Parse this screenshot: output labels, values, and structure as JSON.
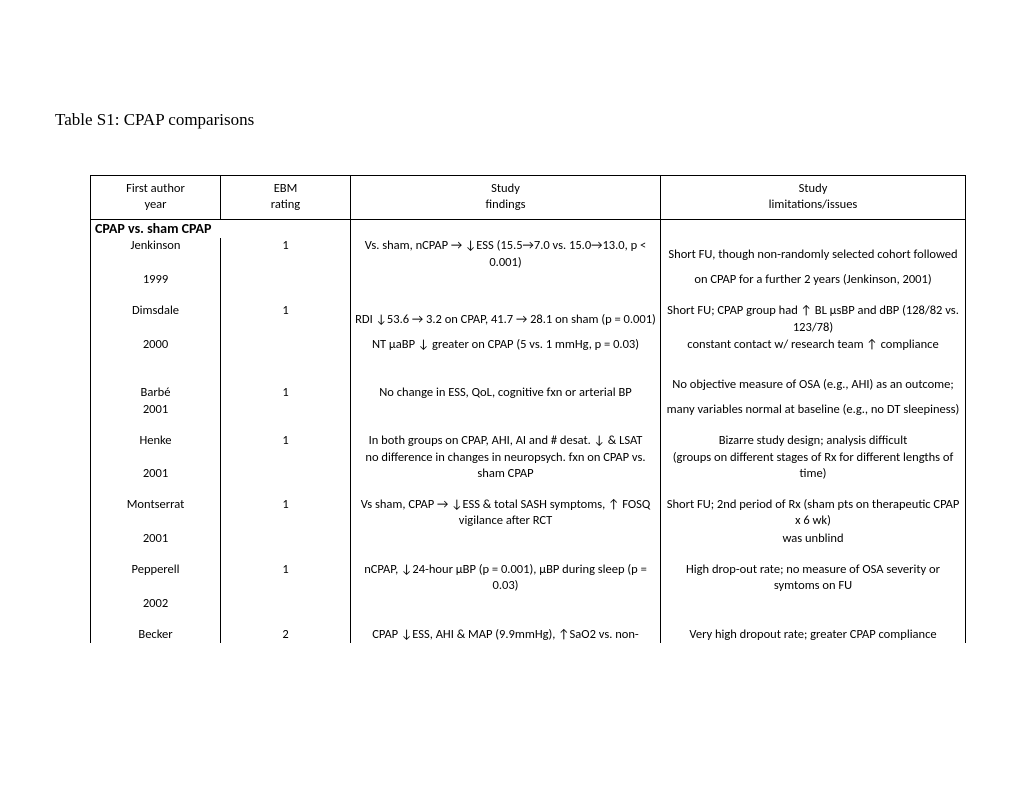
{
  "title": "Table S1: CPAP comparisons",
  "headers": {
    "c1_top": "First author",
    "c1_bot": "year",
    "c2_top": "EBM",
    "c2_bot": "rating",
    "c3_top": "Study",
    "c3_bot": "findings",
    "c4_top": "Study",
    "c4_bot": "limitations/issues"
  },
  "section": "CPAP vs. sham CPAP",
  "rows": {
    "jenkinson": {
      "author": "Jenkinson",
      "year": "1999",
      "rating": "1",
      "f1": "Vs. sham, nCPAP → ↓ESS (15.5→7.0 vs. 15.0→13.0, p < 0.001)",
      "f2": "",
      "l1": "Short FU, though non-randomly selected cohort followed",
      "l2": "on CPAP for a further 2 years (Jenkinson, 2001)"
    },
    "dimsdale": {
      "author": "Dimsdale",
      "year": "2000",
      "rating": "1",
      "f1": "RDI ↓53.6 → 3.2 on CPAP, 41.7 → 28.1 on sham (p = 0.001)",
      "f2": "NT  μaBP ↓ greater on CPAP (5 vs. 1 mmHg, p = 0.03)",
      "l1": "Short FU; CPAP group had ↑ BL μsBP and dBP (128/82 vs. 123/78)",
      "l2": "constant contact w/ research team ↑ compliance"
    },
    "barbe": {
      "author": "Barbé",
      "year": "2001",
      "rating": "1",
      "f1": "No change in ESS, QoL, cognitive fxn or arterial BP",
      "f2": "",
      "l1": "No objective measure of OSA (e.g., AHI) as an outcome;",
      "l2": "many variables normal at baseline  (e.g., no DT sleepiness)"
    },
    "henke": {
      "author": "Henke",
      "year": "2001",
      "rating": "1",
      "f1": "In both groups on CPAP, AHI, AI and # desat. ↓ & LSAT",
      "f2": "no difference in changes in neuropsych. fxn on CPAP vs. sham CPAP",
      "l1": "Bizarre study design; analysis difficult",
      "l2": "(groups on different stages of Rx for different lengths of time)"
    },
    "montserrat": {
      "author": "Montserrat",
      "year": "2001",
      "rating": "1",
      "f1": "Vs sham, CPAP → ↓ESS & total SASH symptoms, ↑ FOSQ vigilance after RCT",
      "f2": "",
      "l1": "Short FU; 2nd period of Rx (sham pts on therapeutic CPAP x 6 wk)",
      "l2": "was unblind"
    },
    "pepperell": {
      "author": "Pepperell",
      "year": "2002",
      "rating": "1",
      "f1": "nCPAP, ↓24-hour μBP (p = 0.001), μBP during sleep (p = 0.03)",
      "f2": "",
      "l1": "High drop-out rate; no measure of OSA severity or symtoms on FU",
      "l2": ""
    },
    "becker": {
      "author": "Becker",
      "rating": "2",
      "f1": "CPAP ↓ESS, AHI & MAP (9.9mmHg), ↑SaO2 vs. non-",
      "l1": "Very high dropout rate; greater CPAP compliance"
    }
  }
}
